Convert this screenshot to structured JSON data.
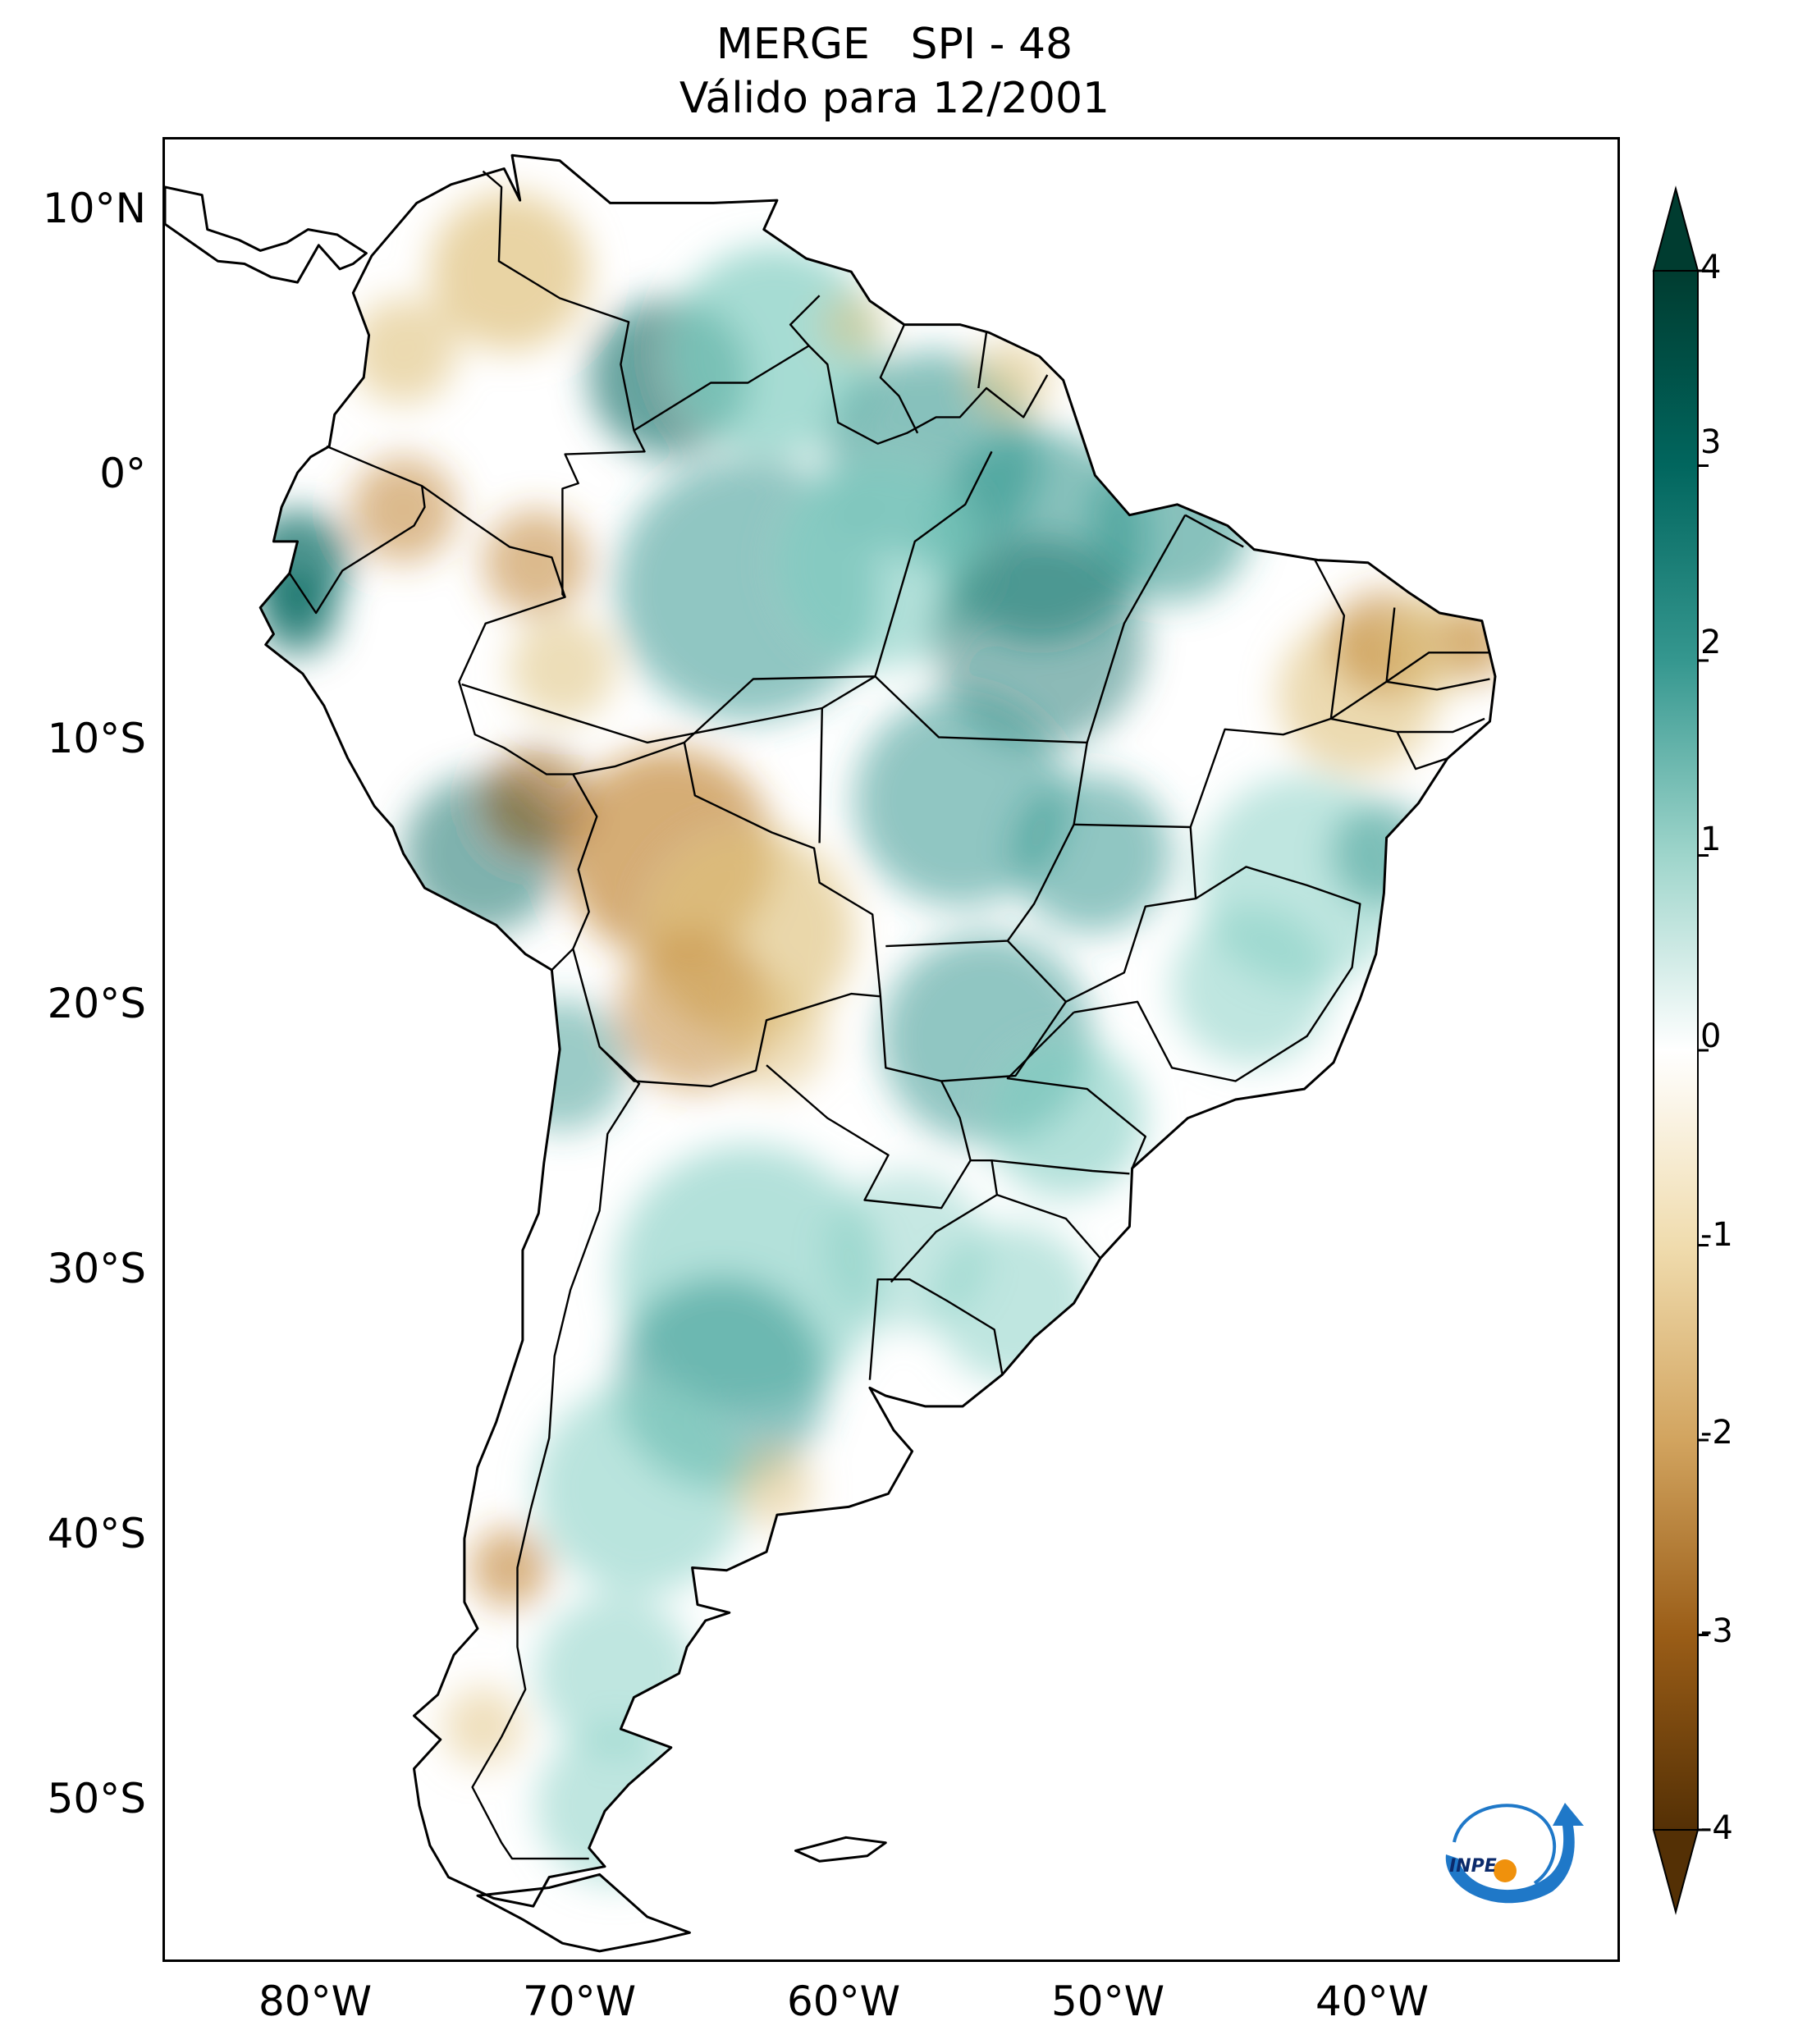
{
  "title": {
    "line1": "MERGE   SPI - 48",
    "line2": "Válido para 12/2001"
  },
  "map": {
    "lat_labels": [
      "10°N",
      "0°",
      "10°S",
      "20°S",
      "30°S",
      "40°S",
      "50°S"
    ],
    "lon_labels": [
      "80°W",
      "70°W",
      "60°W",
      "50°W",
      "40°W"
    ],
    "extent": {
      "lon_min": -85,
      "lon_max": -30,
      "lat_min": -56,
      "lat_max": 13
    }
  },
  "colorbar": {
    "ticks": [
      "4",
      "3",
      "2",
      "1",
      "0",
      "-1",
      "-2",
      "-3",
      "-4"
    ],
    "range": [
      -4,
      4
    ],
    "colors": {
      "dry_extreme": "#543005",
      "dry": "#bf812d",
      "neutral": "#ffffff",
      "wet": "#35978f",
      "wet_extreme": "#003c30"
    }
  },
  "logo": {
    "text": "INPE"
  }
}
